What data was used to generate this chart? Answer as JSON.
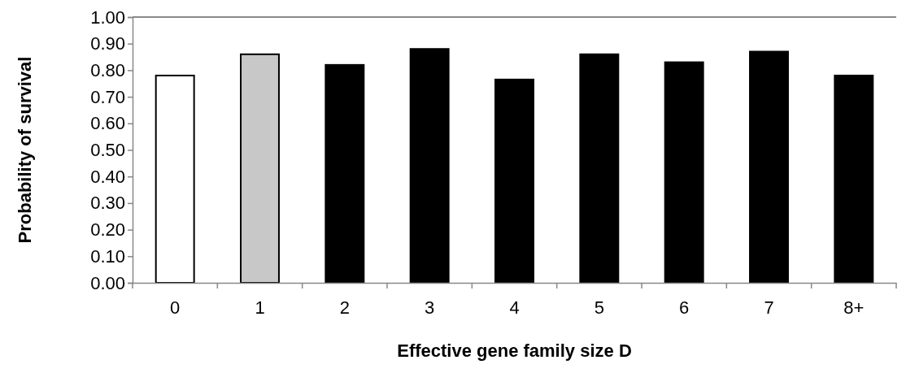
{
  "chart_data": {
    "type": "bar",
    "xlabel": "Effective gene family size D",
    "ylabel": "Probability of survival",
    "categories": [
      "0",
      "1",
      "2",
      "3",
      "4",
      "5",
      "6",
      "7",
      "8+"
    ],
    "values": [
      0.78,
      0.86,
      0.82,
      0.88,
      0.765,
      0.86,
      0.83,
      0.87,
      0.78
    ],
    "colors": [
      "#ffffff",
      "#c8c8c8",
      "#000000",
      "#000000",
      "#000000",
      "#000000",
      "#000000",
      "#000000",
      "#000000"
    ],
    "ylim": [
      0,
      1
    ],
    "yticks": [
      {
        "value": 0,
        "label": "0.00"
      },
      {
        "value": 0.1,
        "label": "0.10"
      },
      {
        "value": 0.2,
        "label": "0.20"
      },
      {
        "value": 0.3,
        "label": "0.30"
      },
      {
        "value": 0.4,
        "label": "0.40"
      },
      {
        "value": 0.5,
        "label": "0.50"
      },
      {
        "value": 0.6,
        "label": "0.60"
      },
      {
        "value": 0.7,
        "label": "0.70"
      },
      {
        "value": 0.8,
        "label": "0.80"
      },
      {
        "value": 0.9,
        "label": "0.90"
      },
      {
        "value": 1,
        "label": "1.00"
      }
    ],
    "grid": false
  }
}
